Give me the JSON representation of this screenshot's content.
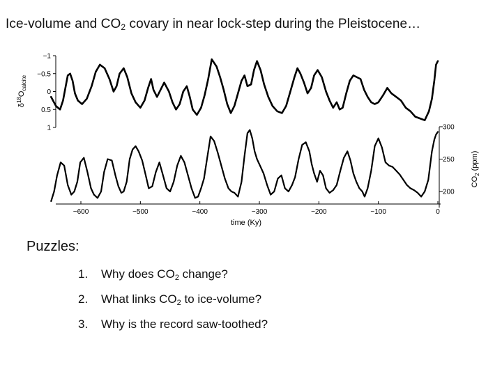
{
  "slide": {
    "title": {
      "before_sub": "Ice-volume and CO",
      "sub": "2",
      "after_sub": " covary in near lock-step during the Pleistocene…"
    },
    "puzzles_heading": "Puzzles:",
    "puzzles": [
      {
        "num": "1.",
        "before_sub": "Why does CO",
        "sub": "2",
        "after_sub": " change?"
      },
      {
        "num": "2.",
        "before_sub": "What links CO",
        "sub": "2",
        "after_sub": " to ice-volume?"
      },
      {
        "num": "3.",
        "before_sub": "Why is the record saw-toothed?",
        "sub": "",
        "after_sub": ""
      }
    ]
  },
  "chart_data": {
    "type": "line",
    "x": {
      "label": "time (Ky)",
      "range": [
        -650,
        0
      ],
      "ticks": [
        -600,
        -500,
        -400,
        -300,
        -200,
        -100,
        0
      ],
      "tick_labels": [
        "−600",
        "−500",
        "−400",
        "−300",
        "−200",
        "−100",
        "0"
      ]
    },
    "panels": [
      {
        "name": "d18O",
        "ylabel_main": "δ",
        "ylabel_sup": "18",
        "ylabel_rest": "O",
        "ylabel_sub": "calcite",
        "y_axis_side": "left",
        "y_inverted": true,
        "ylim": [
          -1,
          1
        ],
        "ticks": [
          -1,
          -0.5,
          0,
          0.5,
          1
        ],
        "tick_labels": [
          "−1",
          "−0.5",
          "0",
          "0.5",
          "1"
        ],
        "series": [
          {
            "x": [
              -650,
              -642,
              -635,
              -630,
              -626,
              -622,
              -618,
              -614,
              -610,
              -605,
              -598,
              -590,
              -582,
              -575,
              -568,
              -560,
              -552,
              -545,
              -540,
              -535,
              -528,
              -522,
              -515,
              -508,
              -500,
              -493,
              -487,
              -482,
              -478,
              -472,
              -466,
              -460,
              -452,
              -446,
              -440,
              -434,
              -428,
              -422,
              -417,
              -412,
              -405,
              -398,
              -392,
              -386,
              -380,
              -372,
              -366,
              -360,
              -354,
              -348,
              -342,
              -336,
              -330,
              -325,
              -320,
              -314,
              -309,
              -304,
              -298,
              -292,
              -285,
              -278,
              -270,
              -262,
              -255,
              -248,
              -241,
              -236,
              -231,
              -225,
              -219,
              -213,
              -208,
              -202,
              -195,
              -188,
              -182,
              -176,
              -170,
              -165,
              -160,
              -154,
              -148,
              -142,
              -136,
              -130,
              -124,
              -118,
              -112,
              -106,
              -100,
              -92,
              -85,
              -78,
              -70,
              -62,
              -54,
              -46,
              -38,
              -30,
              -22,
              -15,
              -10,
              -6,
              -3,
              0
            ],
            "y": [
              0.15,
              0.4,
              0.5,
              0.25,
              -0.1,
              -0.45,
              -0.5,
              -0.3,
              0.05,
              0.25,
              0.35,
              0.2,
              -0.15,
              -0.55,
              -0.75,
              -0.65,
              -0.35,
              0.0,
              -0.15,
              -0.5,
              -0.65,
              -0.4,
              0.05,
              0.3,
              0.45,
              0.25,
              -0.1,
              -0.35,
              -0.05,
              0.15,
              -0.05,
              -0.25,
              0.0,
              0.3,
              0.5,
              0.35,
              0.0,
              -0.15,
              0.15,
              0.5,
              0.65,
              0.45,
              0.1,
              -0.35,
              -0.9,
              -0.7,
              -0.4,
              -0.05,
              0.35,
              0.6,
              0.4,
              0.05,
              -0.3,
              -0.45,
              -0.15,
              -0.2,
              -0.6,
              -0.85,
              -0.6,
              -0.2,
              0.15,
              0.4,
              0.55,
              0.6,
              0.4,
              0.0,
              -0.4,
              -0.65,
              -0.5,
              -0.25,
              0.05,
              -0.1,
              -0.45,
              -0.6,
              -0.4,
              0.0,
              0.25,
              0.45,
              0.3,
              0.5,
              0.45,
              0.05,
              -0.3,
              -0.45,
              -0.4,
              -0.35,
              -0.05,
              0.15,
              0.3,
              0.35,
              0.3,
              0.1,
              -0.1,
              0.05,
              0.15,
              0.25,
              0.45,
              0.55,
              0.7,
              0.75,
              0.8,
              0.55,
              0.2,
              -0.3,
              -0.75,
              -0.85
            ]
          }
        ]
      },
      {
        "name": "CO2",
        "ylabel_main": "CO",
        "ylabel_sub": "2",
        "ylabel_rest": " (ppm)",
        "y_axis_side": "right",
        "ylim": [
          175,
          300
        ],
        "ticks": [
          200,
          250,
          300
        ],
        "tick_labels": [
          "200",
          "250",
          "300"
        ],
        "series": [
          {
            "x": [
              -650,
              -645,
              -640,
              -634,
              -628,
              -622,
              -616,
              -611,
              -606,
              -601,
              -595,
              -589,
              -583,
              -578,
              -572,
              -566,
              -561,
              -555,
              -548,
              -542,
              -537,
              -532,
              -528,
              -523,
              -518,
              -513,
              -508,
              -503,
              -497,
              -491,
              -486,
              -480,
              -474,
              -468,
              -462,
              -456,
              -450,
              -444,
              -438,
              -432,
              -426,
              -420,
              -414,
              -408,
              -403,
              -398,
              -393,
              -388,
              -382,
              -376,
              -370,
              -364,
              -358,
              -352,
              -347,
              -342,
              -336,
              -330,
              -325,
              -320,
              -316,
              -312,
              -308,
              -304,
              -299,
              -293,
              -287,
              -281,
              -275,
              -269,
              -263,
              -257,
              -251,
              -245,
              -240,
              -234,
              -228,
              -222,
              -216,
              -212,
              -208,
              -203,
              -198,
              -193,
              -188,
              -182,
              -176,
              -170,
              -164,
              -158,
              -152,
              -147,
              -142,
              -137,
              -132,
              -127,
              -123,
              -118,
              -112,
              -106,
              -100,
              -94,
              -88,
              -82,
              -76,
              -70,
              -64,
              -58,
              -52,
              -46,
              -40,
              -34,
              -28,
              -22,
              -16,
              -10,
              -6,
              -3,
              0
            ],
            "y": [
              185,
              200,
              225,
              245,
              240,
              210,
              195,
              200,
              215,
              245,
              252,
              230,
              205,
              195,
              190,
              200,
              230,
              250,
              248,
              225,
              208,
              198,
              200,
              215,
              250,
              265,
              270,
              262,
              248,
              225,
              205,
              208,
              230,
              245,
              225,
              205,
              200,
              215,
              240,
              255,
              245,
              225,
              205,
              190,
              192,
              205,
              220,
              250,
              285,
              278,
              260,
              240,
              220,
              205,
              200,
              198,
              192,
              215,
              255,
              290,
              295,
              282,
              262,
              250,
              240,
              228,
              210,
              195,
              200,
              220,
              225,
              205,
              200,
              210,
              222,
              250,
              272,
              276,
              262,
              242,
              228,
              215,
              232,
              225,
              205,
              198,
              202,
              210,
              232,
              252,
              262,
              248,
              228,
              215,
              205,
              200,
              192,
              205,
              232,
              270,
              282,
              268,
              245,
              240,
              238,
              232,
              226,
              218,
              210,
              205,
              202,
              198,
              192,
              200,
              218,
              262,
              280,
              288,
              292
            ]
          }
        ]
      }
    ]
  }
}
